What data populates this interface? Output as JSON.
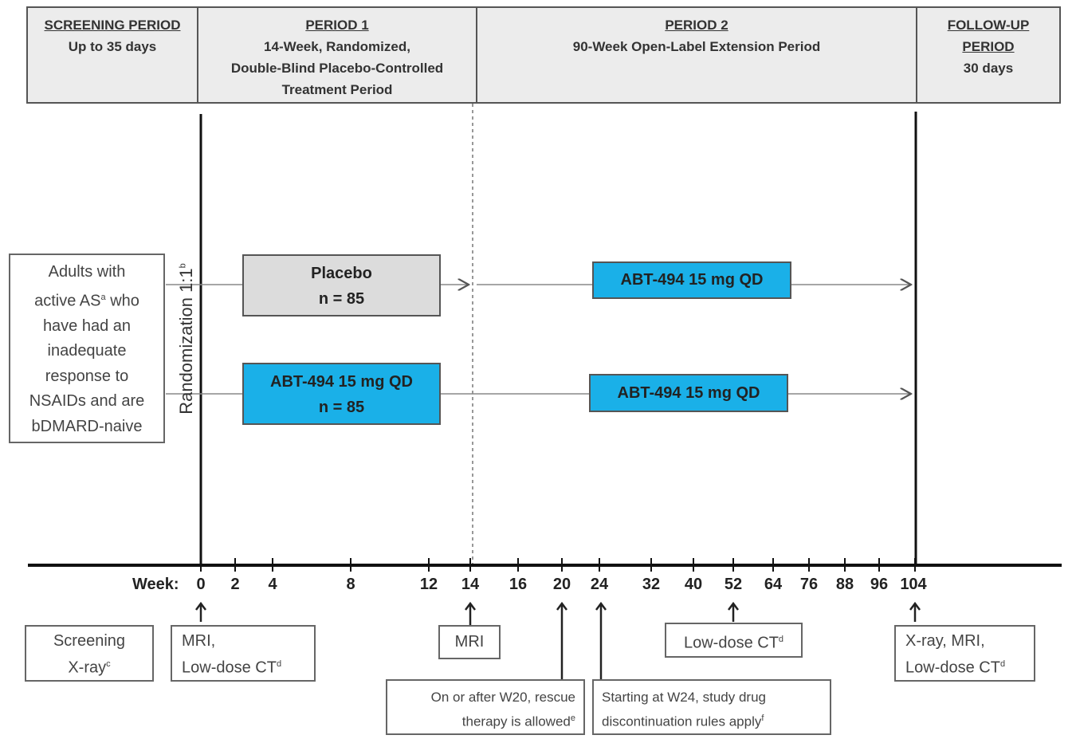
{
  "header": {
    "screening": {
      "title": "SCREENING PERIOD",
      "sub": "Up to 35 days"
    },
    "period1": {
      "title": "PERIOD 1",
      "lines": [
        "14-Week, Randomized,",
        "Double-Blind Placebo-Controlled",
        "Treatment Period"
      ]
    },
    "period2": {
      "title": "PERIOD 2",
      "lines": [
        "90-Week Open-Label Extension Period"
      ]
    },
    "followup": {
      "title": [
        "FOLLOW-UP",
        "PERIOD"
      ],
      "sub": "30 days"
    }
  },
  "population": {
    "lines": [
      "Adults with",
      "active AS",
      "who",
      "have had an",
      "inadequate",
      "response to",
      "NSAIDs and are",
      "bDMARD-naive"
    ],
    "sup": "a"
  },
  "randomization": {
    "label": "Randomization 1:1",
    "sup": "b"
  },
  "arms": [
    {
      "p1_label": "Placebo",
      "p1_n": "n = 85",
      "p2_label": "ABT-494 15 mg QD"
    },
    {
      "p1_label": "ABT-494 15 mg QD",
      "p1_n": "n = 85",
      "p2_label": "ABT-494 15 mg QD"
    }
  ],
  "axis": {
    "label": "Week:",
    "ticks": [
      "0",
      "2",
      "4",
      "8",
      "12",
      "14",
      "16",
      "20",
      "24",
      "32",
      "40",
      "52",
      "64",
      "76",
      "88",
      "96",
      "104"
    ]
  },
  "events": {
    "screening_xray": {
      "lines": [
        "Screening",
        "X-ray"
      ],
      "sup": "c"
    },
    "w0": {
      "lines": [
        "MRI,",
        "Low-dose CT"
      ],
      "sup": "d"
    },
    "w14": {
      "text": "MRI"
    },
    "w20": {
      "lines": [
        "On or after W20, rescue",
        "therapy is allowed"
      ],
      "sup": "e"
    },
    "w24": {
      "lines": [
        "Starting at W24, study drug",
        "discontinuation rules apply"
      ],
      "sup": "f"
    },
    "w52": {
      "text": "Low-dose CT",
      "sup": "d"
    },
    "w104": {
      "lines": [
        "X-ray, MRI,",
        "Low-dose CT"
      ],
      "sup": "d"
    }
  },
  "colors": {
    "active_arm": "#1ab0e8",
    "placebo_arm": "#dcdcdc",
    "header_bg": "#ececec"
  }
}
